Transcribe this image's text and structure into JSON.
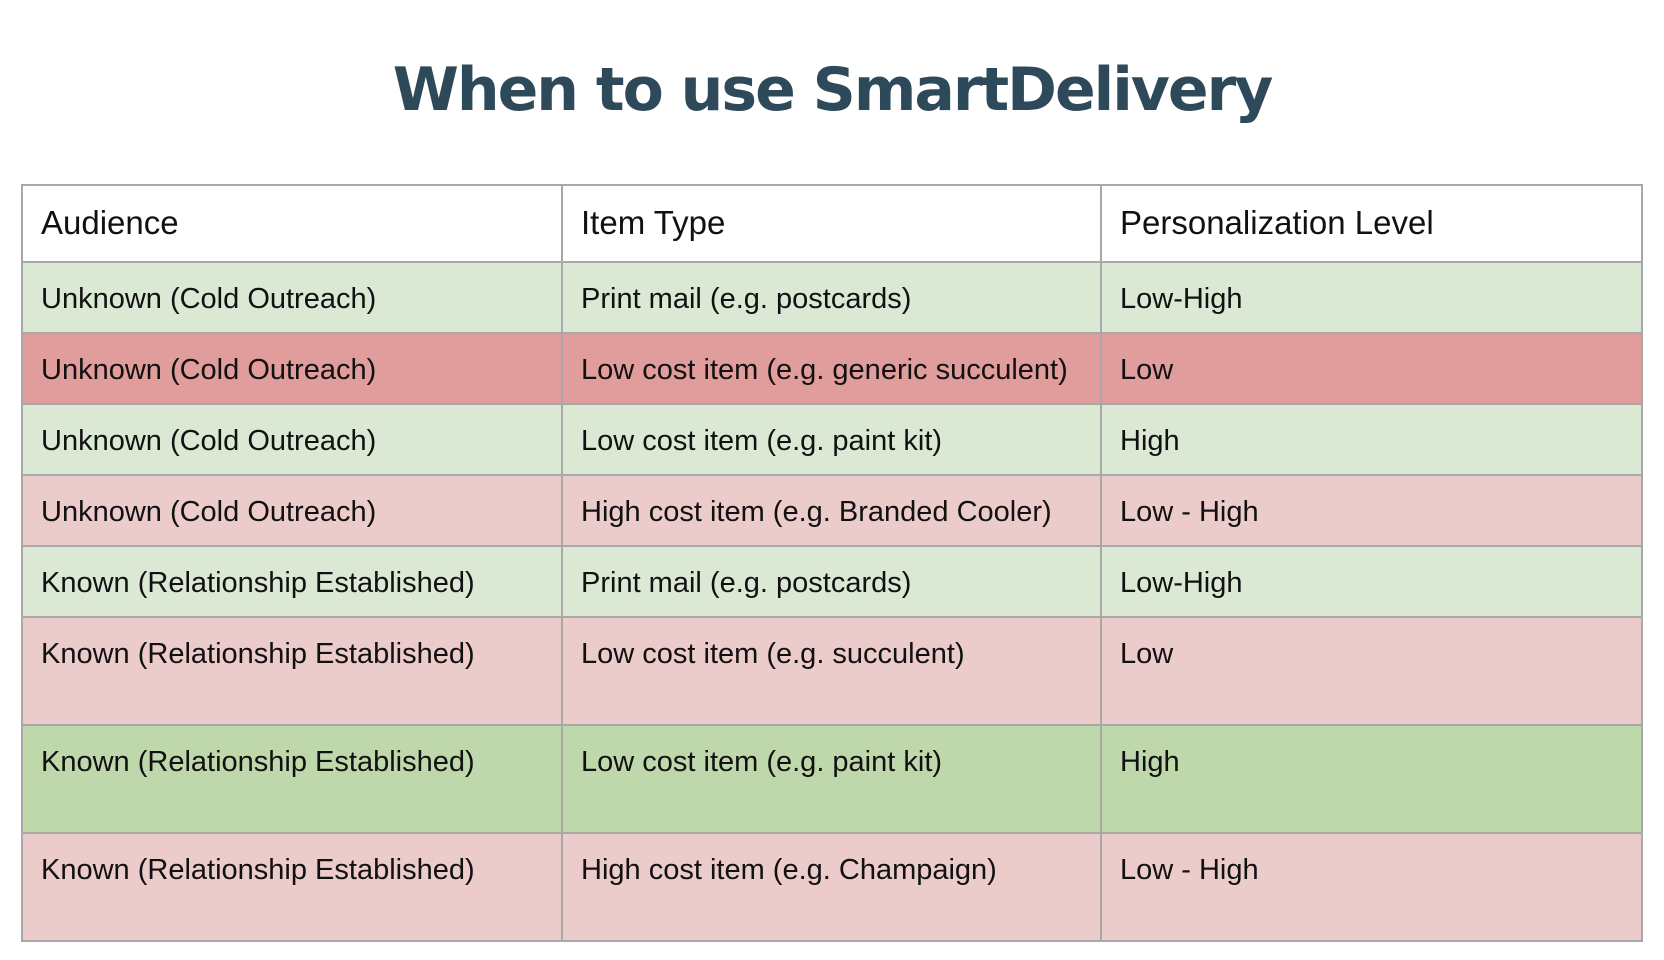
{
  "header": {
    "title": "When to use SmartDelivery"
  },
  "table": {
    "columns": [
      "Audience",
      "Item Type",
      "Personalization Level"
    ],
    "rows": [
      [
        "Unknown (Cold Outreach)",
        "Print mail (e.g. postcards)",
        "Low-High"
      ],
      [
        "Unknown (Cold Outreach)",
        "Low cost item (e.g. generic succulent)",
        "Low"
      ],
      [
        "Unknown (Cold Outreach)",
        "Low cost item (e.g. paint kit)",
        "High"
      ],
      [
        "Unknown (Cold Outreach)",
        "High cost item (e.g. Branded Cooler)",
        "Low - High"
      ],
      [
        "Known (Relationship Established)",
        "Print mail (e.g. postcards)",
        "Low-High"
      ],
      [
        "Known (Relationship Established)",
        "Low cost item (e.g. succulent)",
        "Low"
      ],
      [
        "Known (Relationship Established)",
        "Low cost item (e.g. paint kit)",
        "High"
      ],
      [
        "Known (Relationship Established)",
        "High cost item (e.g. Champaign)",
        "Low - High"
      ]
    ]
  }
}
